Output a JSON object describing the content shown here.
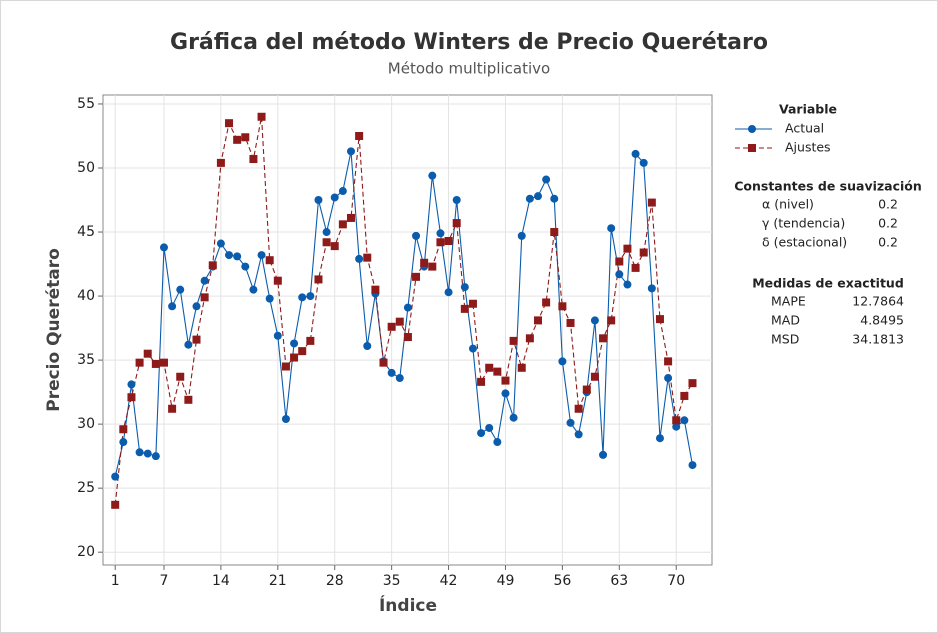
{
  "chart_data": {
    "type": "line",
    "title": "Gráfica del método Winters de Precio Querétaro",
    "subtitle": "Método multiplicativo",
    "x_label": "Índice",
    "y_label": "Precio Querétaro",
    "x": [
      1,
      2,
      3,
      4,
      5,
      6,
      7,
      8,
      9,
      10,
      11,
      12,
      13,
      14,
      15,
      16,
      17,
      18,
      19,
      20,
      21,
      22,
      23,
      24,
      25,
      26,
      27,
      28,
      29,
      30,
      31,
      32,
      33,
      34,
      35,
      36,
      37,
      38,
      39,
      40,
      41,
      42,
      43,
      44,
      45,
      46,
      47,
      48,
      49,
      50,
      51,
      52,
      53,
      54,
      55,
      56,
      57,
      58,
      59,
      60,
      61,
      62,
      63,
      64,
      65,
      66,
      67,
      68,
      69,
      70,
      71,
      72
    ],
    "series": [
      {
        "name": "Actual",
        "color": "#0b5cad",
        "marker": "circle",
        "dashed": false,
        "values": [
          25.9,
          28.6,
          33.1,
          27.8,
          27.7,
          27.5,
          43.8,
          39.2,
          40.5,
          36.2,
          39.2,
          41.2,
          42.3,
          44.1,
          43.2,
          43.1,
          42.3,
          40.5,
          43.2,
          39.8,
          36.9,
          30.4,
          36.3,
          39.9,
          40.0,
          47.5,
          45.0,
          47.7,
          48.2,
          51.3,
          42.9,
          36.1,
          40.2,
          34.9,
          34.0,
          33.6,
          39.1,
          44.7,
          42.3,
          49.4,
          44.9,
          40.3,
          47.5,
          40.7,
          35.9,
          29.3,
          29.7,
          28.6,
          32.4,
          30.5,
          44.7,
          47.6,
          47.8,
          49.1,
          47.6,
          34.9,
          30.1,
          29.2,
          32.5,
          38.1,
          27.6,
          45.3,
          41.7,
          40.9,
          51.1,
          50.4,
          40.6,
          28.9,
          33.6,
          29.8,
          30.3,
          26.8
        ]
      },
      {
        "name": "Ajustes",
        "color": "#8e1a1a",
        "marker": "square",
        "dashed": true,
        "values": [
          23.7,
          29.6,
          32.1,
          34.8,
          35.5,
          34.7,
          34.8,
          31.2,
          33.7,
          31.9,
          36.6,
          39.9,
          42.4,
          50.4,
          53.5,
          52.2,
          52.4,
          50.7,
          54.0,
          42.8,
          41.2,
          34.5,
          35.2,
          35.7,
          36.5,
          41.3,
          44.2,
          43.9,
          45.6,
          46.1,
          52.5,
          43.0,
          40.5,
          34.8,
          37.6,
          38.0,
          36.8,
          41.5,
          42.6,
          42.3,
          44.2,
          44.3,
          45.7,
          39.0,
          39.4,
          33.3,
          34.4,
          34.1,
          33.4,
          36.5,
          34.4,
          36.7,
          38.1,
          39.5,
          45.0,
          39.2,
          37.9,
          31.2,
          32.7,
          33.7,
          36.7,
          38.1,
          42.7,
          43.7,
          42.2,
          43.4,
          47.3,
          38.2,
          34.9,
          30.3,
          32.2,
          33.2
        ]
      }
    ],
    "xlim": [
      -0.5,
      74.4
    ],
    "ylim": [
      19,
      55.7
    ],
    "xticks": [
      1,
      7,
      14,
      21,
      28,
      35,
      42,
      49,
      56,
      63,
      70
    ],
    "yticks": [
      20,
      25,
      30,
      35,
      40,
      45,
      50,
      55
    ],
    "grid": true,
    "legend_title": "Variable",
    "smoothing": {
      "title": "Constantes de suavización",
      "rows": [
        {
          "label": "α (nivel)",
          "value": 0.2
        },
        {
          "label": "γ (tendencia)",
          "value": 0.2
        },
        {
          "label": "δ (estacional)",
          "value": 0.2
        }
      ]
    },
    "accuracy": {
      "title": "Medidas de exactitud",
      "rows": [
        {
          "label": "MAPE",
          "value": 12.7864
        },
        {
          "label": "MAD",
          "value": 4.8495
        },
        {
          "label": "MSD",
          "value": 34.1813
        }
      ]
    }
  }
}
